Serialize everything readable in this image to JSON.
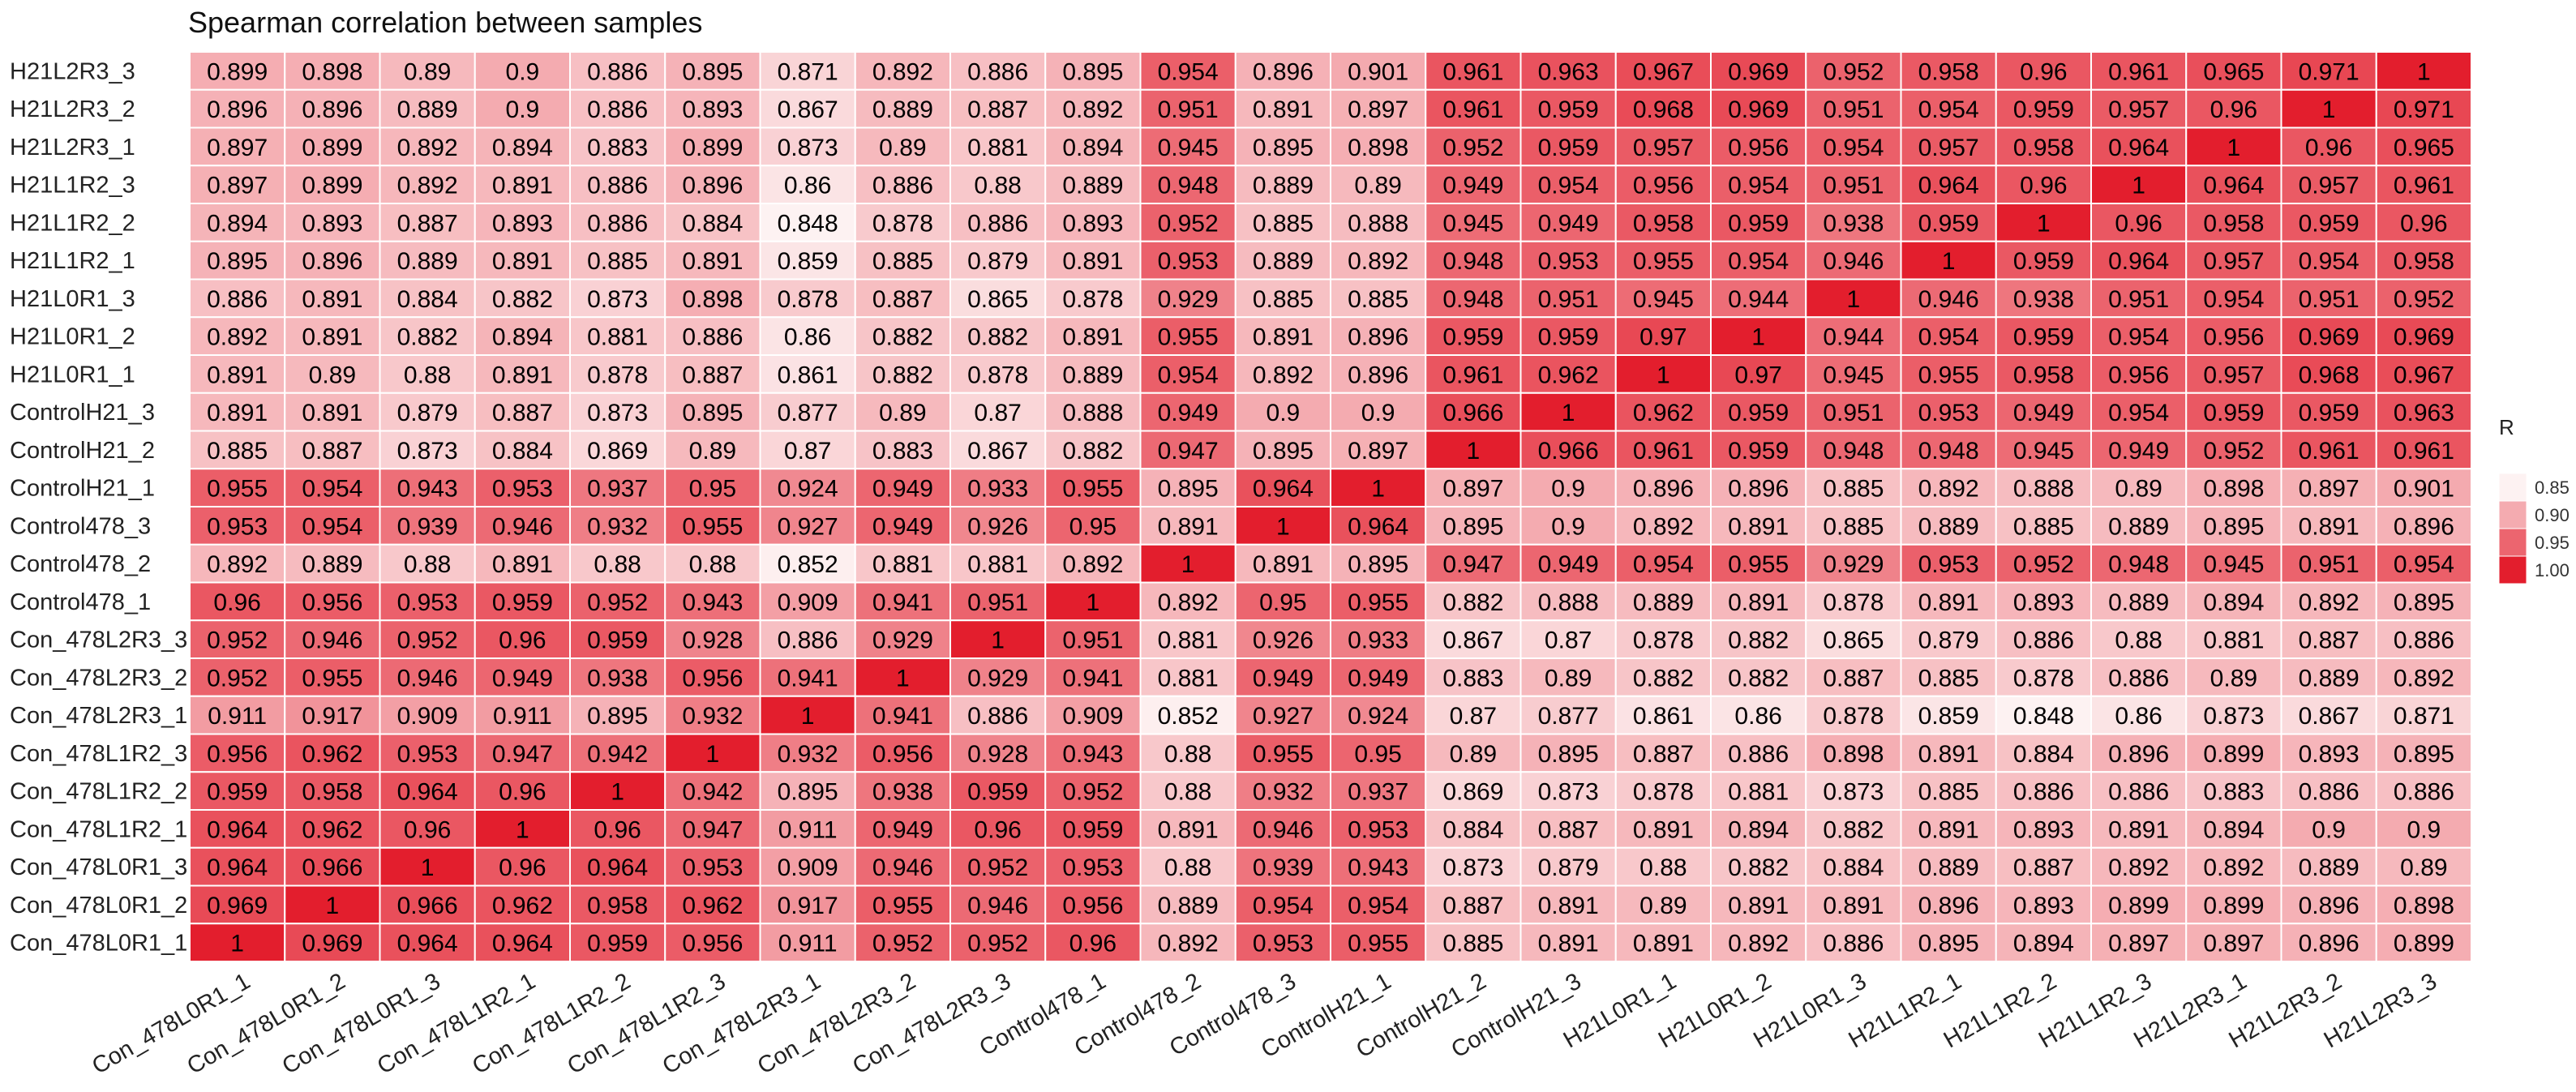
{
  "chart_data": {
    "type": "heatmap",
    "title": "Spearman correlation between samples",
    "x_labels": [
      "Con_478L0R1_1",
      "Con_478L0R1_2",
      "Con_478L0R1_3",
      "Con_478L1R2_1",
      "Con_478L1R2_2",
      "Con_478L1R2_3",
      "Con_478L2R3_1",
      "Con_478L2R3_2",
      "Con_478L2R3_3",
      "Control478_1",
      "Control478_2",
      "Control478_3",
      "ControlH21_1",
      "ControlH21_2",
      "ControlH21_3",
      "H21L0R1_1",
      "H21L0R1_2",
      "H21L0R1_3",
      "H21L1R2_1",
      "H21L1R2_2",
      "H21L1R2_3",
      "H21L2R3_1",
      "H21L2R3_2",
      "H21L2R3_3"
    ],
    "y_labels": [
      "H21L2R3_3",
      "H21L2R3_2",
      "H21L2R3_1",
      "H21L1R2_3",
      "H21L1R2_2",
      "H21L1R2_1",
      "H21L0R1_3",
      "H21L0R1_2",
      "H21L0R1_1",
      "ControlH21_3",
      "ControlH21_2",
      "ControlH21_1",
      "Control478_3",
      "Control478_2",
      "Control478_1",
      "Con_478L2R3_3",
      "Con_478L2R3_2",
      "Con_478L2R3_1",
      "Con_478L1R2_3",
      "Con_478L1R2_2",
      "Con_478L1R2_1",
      "Con_478L0R1_3",
      "Con_478L0R1_2",
      "Con_478L0R1_1"
    ],
    "values": [
      [
        "0.899",
        "0.898",
        "0.89",
        "0.9",
        "0.886",
        "0.895",
        "0.871",
        "0.892",
        "0.886",
        "0.895",
        "0.954",
        "0.896",
        "0.901",
        "0.961",
        "0.963",
        "0.967",
        "0.969",
        "0.952",
        "0.958",
        "0.96",
        "0.961",
        "0.965",
        "0.971",
        "1"
      ],
      [
        "0.896",
        "0.896",
        "0.889",
        "0.9",
        "0.886",
        "0.893",
        "0.867",
        "0.889",
        "0.887",
        "0.892",
        "0.951",
        "0.891",
        "0.897",
        "0.961",
        "0.959",
        "0.968",
        "0.969",
        "0.951",
        "0.954",
        "0.959",
        "0.957",
        "0.96",
        "1",
        "0.971"
      ],
      [
        "0.897",
        "0.899",
        "0.892",
        "0.894",
        "0.883",
        "0.899",
        "0.873",
        "0.89",
        "0.881",
        "0.894",
        "0.945",
        "0.895",
        "0.898",
        "0.952",
        "0.959",
        "0.957",
        "0.956",
        "0.954",
        "0.957",
        "0.958",
        "0.964",
        "1",
        "0.96",
        "0.965"
      ],
      [
        "0.897",
        "0.899",
        "0.892",
        "0.891",
        "0.886",
        "0.896",
        "0.86",
        "0.886",
        "0.88",
        "0.889",
        "0.948",
        "0.889",
        "0.89",
        "0.949",
        "0.954",
        "0.956",
        "0.954",
        "0.951",
        "0.964",
        "0.96",
        "1",
        "0.964",
        "0.957",
        "0.961"
      ],
      [
        "0.894",
        "0.893",
        "0.887",
        "0.893",
        "0.886",
        "0.884",
        "0.848",
        "0.878",
        "0.886",
        "0.893",
        "0.952",
        "0.885",
        "0.888",
        "0.945",
        "0.949",
        "0.958",
        "0.959",
        "0.938",
        "0.959",
        "1",
        "0.96",
        "0.958",
        "0.959",
        "0.96"
      ],
      [
        "0.895",
        "0.896",
        "0.889",
        "0.891",
        "0.885",
        "0.891",
        "0.859",
        "0.885",
        "0.879",
        "0.891",
        "0.953",
        "0.889",
        "0.892",
        "0.948",
        "0.953",
        "0.955",
        "0.954",
        "0.946",
        "1",
        "0.959",
        "0.964",
        "0.957",
        "0.954",
        "0.958"
      ],
      [
        "0.886",
        "0.891",
        "0.884",
        "0.882",
        "0.873",
        "0.898",
        "0.878",
        "0.887",
        "0.865",
        "0.878",
        "0.929",
        "0.885",
        "0.885",
        "0.948",
        "0.951",
        "0.945",
        "0.944",
        "1",
        "0.946",
        "0.938",
        "0.951",
        "0.954",
        "0.951",
        "0.952"
      ],
      [
        "0.892",
        "0.891",
        "0.882",
        "0.894",
        "0.881",
        "0.886",
        "0.86",
        "0.882",
        "0.882",
        "0.891",
        "0.955",
        "0.891",
        "0.896",
        "0.959",
        "0.959",
        "0.97",
        "1",
        "0.944",
        "0.954",
        "0.959",
        "0.954",
        "0.956",
        "0.969",
        "0.969"
      ],
      [
        "0.891",
        "0.89",
        "0.88",
        "0.891",
        "0.878",
        "0.887",
        "0.861",
        "0.882",
        "0.878",
        "0.889",
        "0.954",
        "0.892",
        "0.896",
        "0.961",
        "0.962",
        "1",
        "0.97",
        "0.945",
        "0.955",
        "0.958",
        "0.956",
        "0.957",
        "0.968",
        "0.967"
      ],
      [
        "0.891",
        "0.891",
        "0.879",
        "0.887",
        "0.873",
        "0.895",
        "0.877",
        "0.89",
        "0.87",
        "0.888",
        "0.949",
        "0.9",
        "0.9",
        "0.966",
        "1",
        "0.962",
        "0.959",
        "0.951",
        "0.953",
        "0.949",
        "0.954",
        "0.959",
        "0.959",
        "0.963"
      ],
      [
        "0.885",
        "0.887",
        "0.873",
        "0.884",
        "0.869",
        "0.89",
        "0.87",
        "0.883",
        "0.867",
        "0.882",
        "0.947",
        "0.895",
        "0.897",
        "1",
        "0.966",
        "0.961",
        "0.959",
        "0.948",
        "0.948",
        "0.945",
        "0.949",
        "0.952",
        "0.961",
        "0.961"
      ],
      [
        "0.955",
        "0.954",
        "0.943",
        "0.953",
        "0.937",
        "0.95",
        "0.924",
        "0.949",
        "0.933",
        "0.955",
        "0.895",
        "0.964",
        "1",
        "0.897",
        "0.9",
        "0.896",
        "0.896",
        "0.885",
        "0.892",
        "0.888",
        "0.89",
        "0.898",
        "0.897",
        "0.901"
      ],
      [
        "0.953",
        "0.954",
        "0.939",
        "0.946",
        "0.932",
        "0.955",
        "0.927",
        "0.949",
        "0.926",
        "0.95",
        "0.891",
        "1",
        "0.964",
        "0.895",
        "0.9",
        "0.892",
        "0.891",
        "0.885",
        "0.889",
        "0.885",
        "0.889",
        "0.895",
        "0.891",
        "0.896"
      ],
      [
        "0.892",
        "0.889",
        "0.88",
        "0.891",
        "0.88",
        "0.88",
        "0.852",
        "0.881",
        "0.881",
        "0.892",
        "1",
        "0.891",
        "0.895",
        "0.947",
        "0.949",
        "0.954",
        "0.955",
        "0.929",
        "0.953",
        "0.952",
        "0.948",
        "0.945",
        "0.951",
        "0.954"
      ],
      [
        "0.96",
        "0.956",
        "0.953",
        "0.959",
        "0.952",
        "0.943",
        "0.909",
        "0.941",
        "0.951",
        "1",
        "0.892",
        "0.95",
        "0.955",
        "0.882",
        "0.888",
        "0.889",
        "0.891",
        "0.878",
        "0.891",
        "0.893",
        "0.889",
        "0.894",
        "0.892",
        "0.895"
      ],
      [
        "0.952",
        "0.946",
        "0.952",
        "0.96",
        "0.959",
        "0.928",
        "0.886",
        "0.929",
        "1",
        "0.951",
        "0.881",
        "0.926",
        "0.933",
        "0.867",
        "0.87",
        "0.878",
        "0.882",
        "0.865",
        "0.879",
        "0.886",
        "0.88",
        "0.881",
        "0.887",
        "0.886"
      ],
      [
        "0.952",
        "0.955",
        "0.946",
        "0.949",
        "0.938",
        "0.956",
        "0.941",
        "1",
        "0.929",
        "0.941",
        "0.881",
        "0.949",
        "0.949",
        "0.883",
        "0.89",
        "0.882",
        "0.882",
        "0.887",
        "0.885",
        "0.878",
        "0.886",
        "0.89",
        "0.889",
        "0.892"
      ],
      [
        "0.911",
        "0.917",
        "0.909",
        "0.911",
        "0.895",
        "0.932",
        "1",
        "0.941",
        "0.886",
        "0.909",
        "0.852",
        "0.927",
        "0.924",
        "0.87",
        "0.877",
        "0.861",
        "0.86",
        "0.878",
        "0.859",
        "0.848",
        "0.86",
        "0.873",
        "0.867",
        "0.871"
      ],
      [
        "0.956",
        "0.962",
        "0.953",
        "0.947",
        "0.942",
        "1",
        "0.932",
        "0.956",
        "0.928",
        "0.943",
        "0.88",
        "0.955",
        "0.95",
        "0.89",
        "0.895",
        "0.887",
        "0.886",
        "0.898",
        "0.891",
        "0.884",
        "0.896",
        "0.899",
        "0.893",
        "0.895"
      ],
      [
        "0.959",
        "0.958",
        "0.964",
        "0.96",
        "1",
        "0.942",
        "0.895",
        "0.938",
        "0.959",
        "0.952",
        "0.88",
        "0.932",
        "0.937",
        "0.869",
        "0.873",
        "0.878",
        "0.881",
        "0.873",
        "0.885",
        "0.886",
        "0.886",
        "0.883",
        "0.886",
        "0.886"
      ],
      [
        "0.964",
        "0.962",
        "0.96",
        "1",
        "0.96",
        "0.947",
        "0.911",
        "0.949",
        "0.96",
        "0.959",
        "0.891",
        "0.946",
        "0.953",
        "0.884",
        "0.887",
        "0.891",
        "0.894",
        "0.882",
        "0.891",
        "0.893",
        "0.891",
        "0.894",
        "0.9",
        "0.9"
      ],
      [
        "0.964",
        "0.966",
        "1",
        "0.96",
        "0.964",
        "0.953",
        "0.909",
        "0.946",
        "0.952",
        "0.953",
        "0.88",
        "0.939",
        "0.943",
        "0.873",
        "0.879",
        "0.88",
        "0.882",
        "0.884",
        "0.889",
        "0.887",
        "0.892",
        "0.892",
        "0.889",
        "0.89"
      ],
      [
        "0.969",
        "1",
        "0.966",
        "0.962",
        "0.958",
        "0.962",
        "0.917",
        "0.955",
        "0.946",
        "0.956",
        "0.889",
        "0.954",
        "0.954",
        "0.887",
        "0.891",
        "0.89",
        "0.891",
        "0.891",
        "0.896",
        "0.893",
        "0.899",
        "0.899",
        "0.896",
        "0.898"
      ],
      [
        "1",
        "0.969",
        "0.964",
        "0.964",
        "0.959",
        "0.956",
        "0.911",
        "0.952",
        "0.952",
        "0.96",
        "0.892",
        "0.953",
        "0.955",
        "0.885",
        "0.891",
        "0.891",
        "0.892",
        "0.886",
        "0.895",
        "0.894",
        "0.897",
        "0.897",
        "0.896",
        "0.899"
      ]
    ],
    "color_scale": {
      "title": "R",
      "min": 0.85,
      "max": 1.0,
      "ticks": [
        "0.85",
        "0.90",
        "0.95",
        "1.00"
      ],
      "low_color": "#fdf2f2",
      "high_color": "#e31e2d"
    }
  }
}
